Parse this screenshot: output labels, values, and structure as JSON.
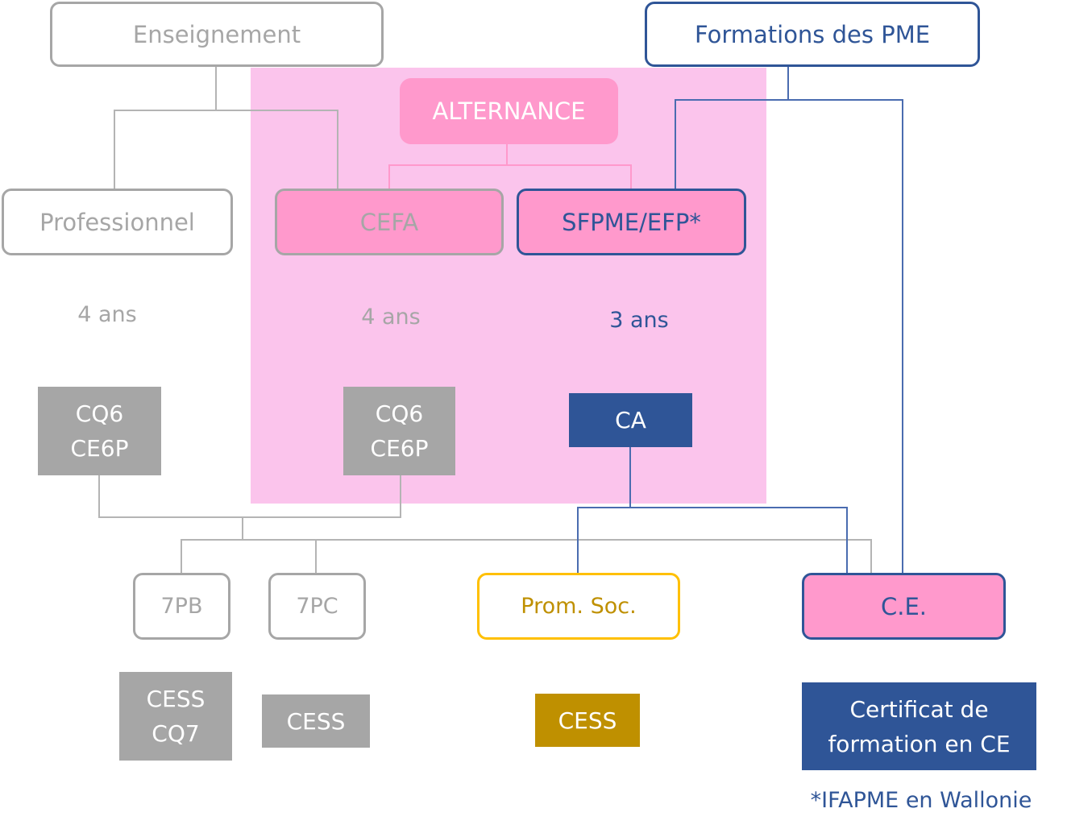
{
  "top": {
    "enseignement": "Enseignement",
    "formations_pme": "Formations des PME"
  },
  "alternance": {
    "title": "ALTERNANCE",
    "cefa": "CEFA",
    "sfpme": "SFPME/EFP*"
  },
  "professionnel": "Professionnel",
  "durations": {
    "professionnel": "4 ans",
    "cefa": "4 ans",
    "sfpme": "3 ans"
  },
  "certificates": {
    "prof": [
      "CQ6",
      "CE6P"
    ],
    "cefa": [
      "CQ6",
      "CE6P"
    ],
    "sfpme": "CA"
  },
  "next_steps": {
    "7pb": "7PB",
    "7pc": "7PC",
    "prom_soc": "Prom. Soc.",
    "ce": "C.E."
  },
  "outcomes": {
    "7pb": [
      "CESS",
      "CQ7"
    ],
    "7pc": "CESS",
    "prom_soc": "CESS",
    "ce": [
      "Certificat de",
      "formation en CE"
    ]
  },
  "footnote": "*IFAPME en Wallonie",
  "colors": {
    "gray": "#a6a6a6",
    "blue": "#2f5597",
    "pink": "#ff99cc",
    "pink_bg": "#fbc4ec",
    "yellow": "#ffc000",
    "gold": "#bf9000"
  }
}
